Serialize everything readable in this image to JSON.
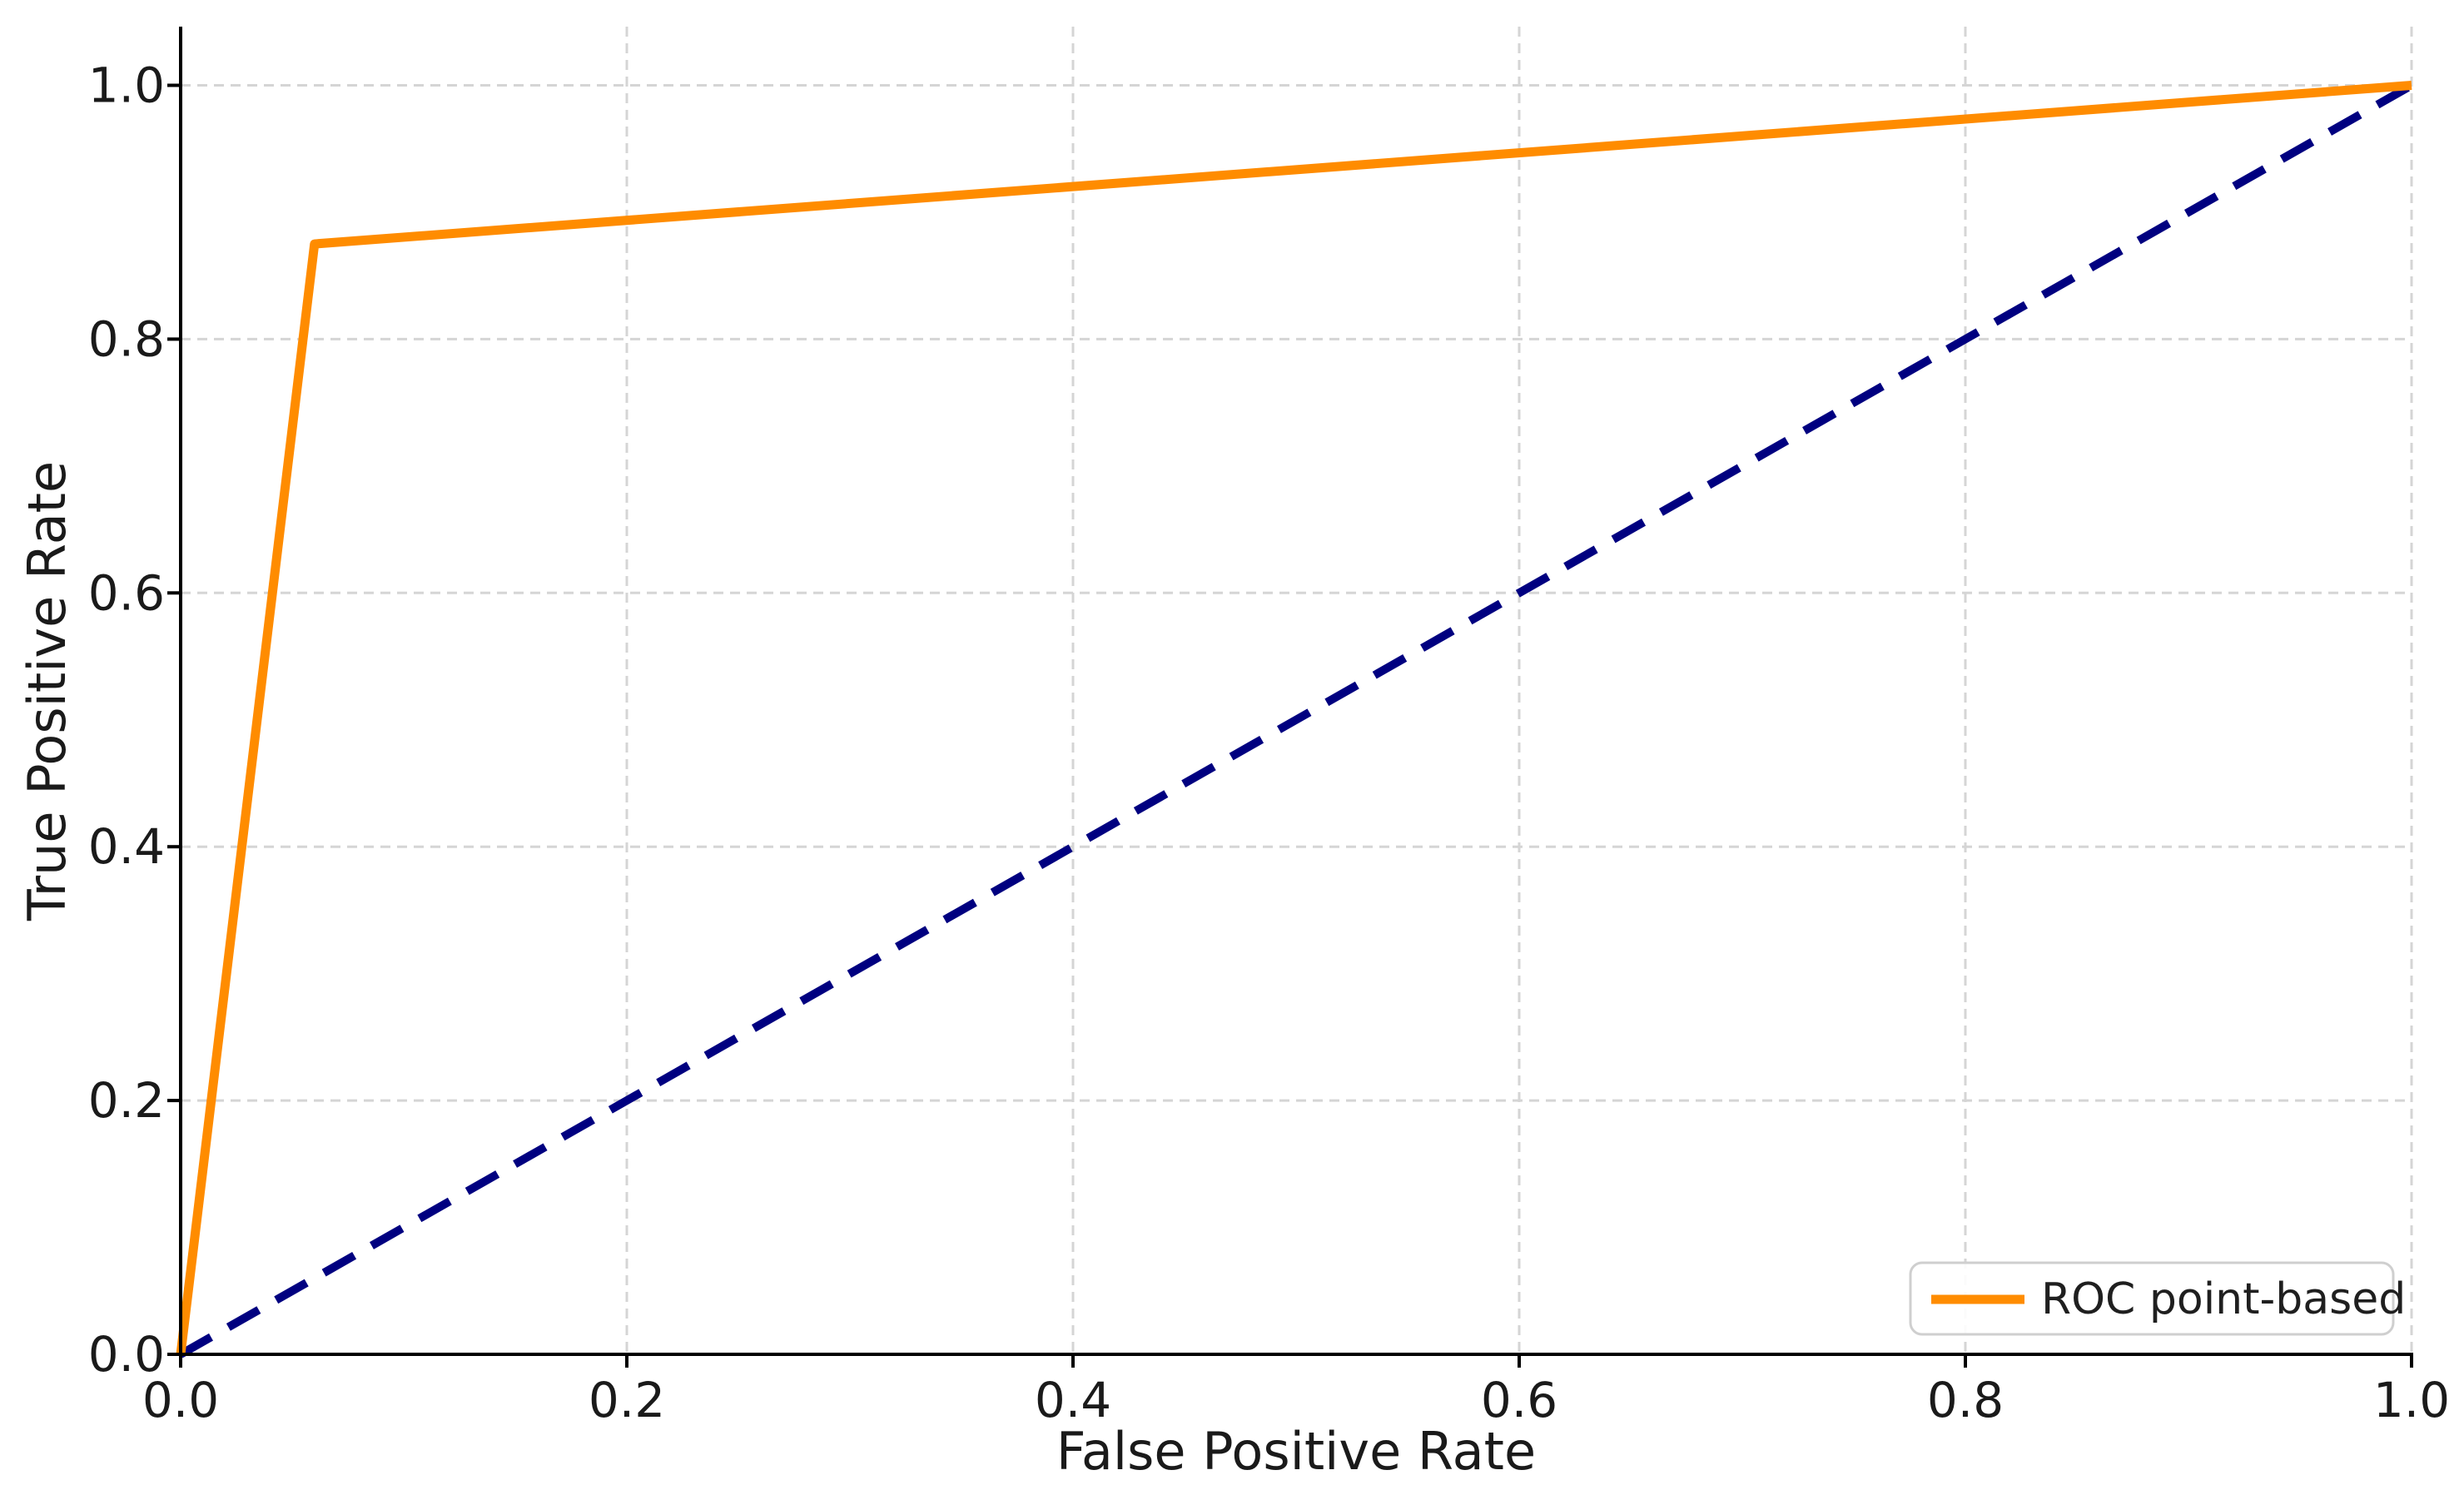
{
  "figure": {
    "background_color": "#ffffff",
    "text_color": "#1a1a1a",
    "grid_color": "#d5d5d5",
    "spine_color": "#000000"
  },
  "chart_data": {
    "type": "line",
    "title": "",
    "xlabel": "False Positive Rate",
    "ylabel": "True Positive Rate",
    "xlim": [
      0,
      1.0
    ],
    "ylim": [
      0,
      1.05
    ],
    "grid": true,
    "grid_style": "dashed",
    "spines": [
      "left",
      "bottom"
    ],
    "x_ticks": {
      "values": [
        0,
        0.2,
        0.4,
        0.6,
        0.8,
        1.0
      ],
      "labels": [
        "0.0",
        "0.2",
        "0.4",
        "0.6",
        "0.8",
        "1.0"
      ]
    },
    "y_ticks": {
      "values": [
        0,
        0.2,
        0.4,
        0.6,
        0.8,
        1.0
      ],
      "labels": [
        "0.0",
        "0.2",
        "0.4",
        "0.6",
        "0.8",
        "1.0"
      ]
    },
    "series": [
      {
        "name": "ROC point-based",
        "color": "#FF8C00",
        "style": "solid",
        "in_legend": true,
        "x": [
          0,
          0.06,
          1.0
        ],
        "y": [
          0,
          0.875,
          1.0
        ]
      },
      {
        "name": "",
        "color": "#000080",
        "style": "dashed",
        "in_legend": false,
        "x": [
          0,
          1.0
        ],
        "y": [
          0,
          1.0
        ]
      }
    ],
    "legend": {
      "position": "lower right",
      "entries": [
        {
          "label": "ROC point-based",
          "swatch_color": "#FF8C00"
        }
      ]
    }
  }
}
